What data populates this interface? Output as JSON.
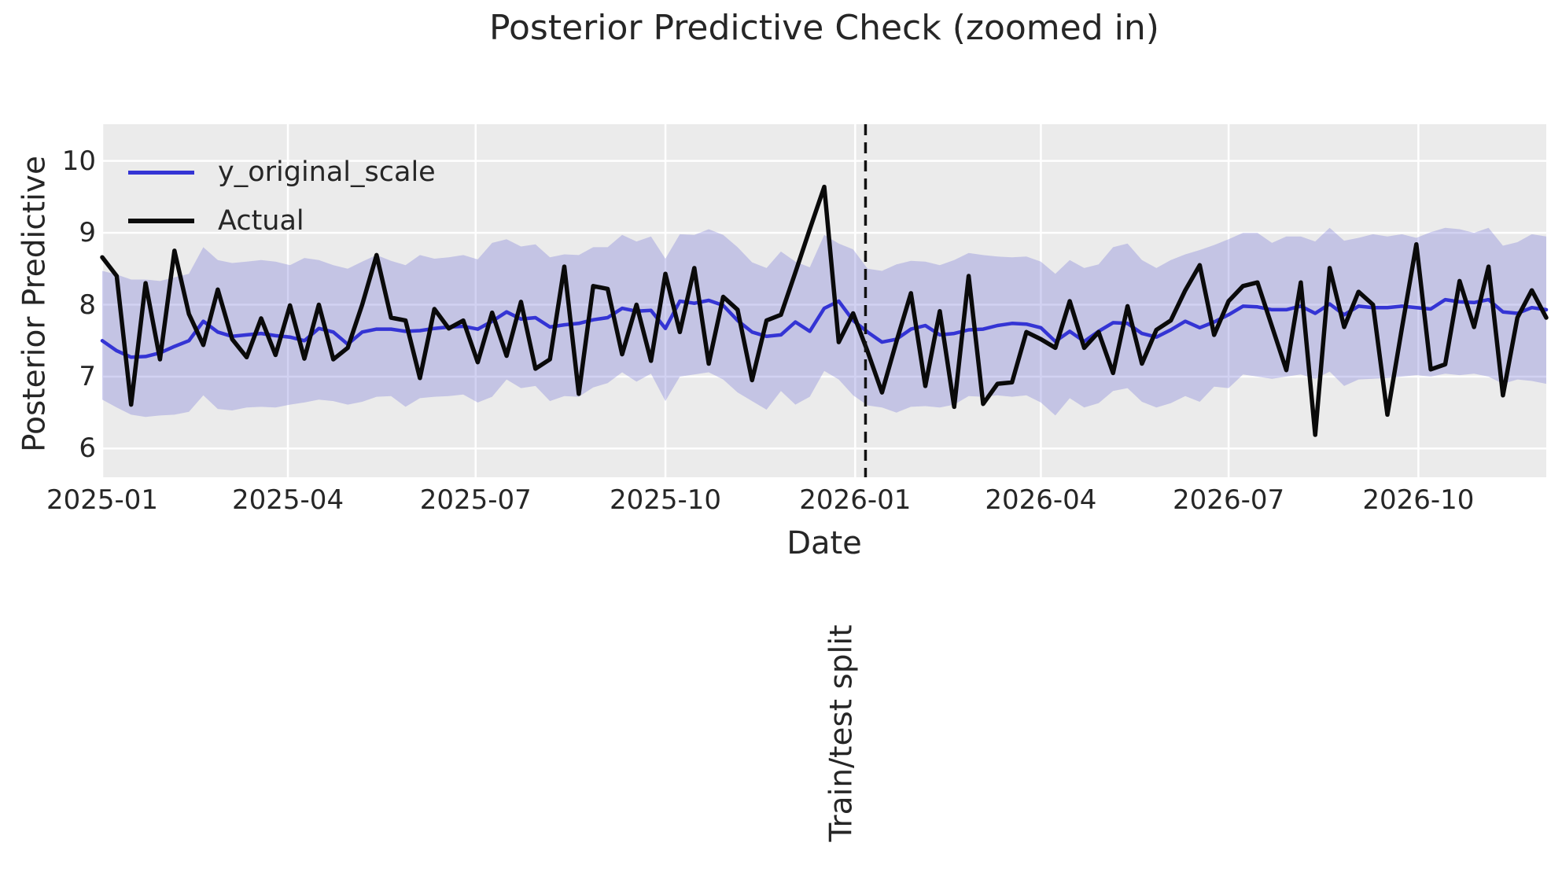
{
  "title": "Posterior Predictive Check (zoomed in)",
  "axes": {
    "xlabel": "Date",
    "ylabel": "Posterior Predictive",
    "y_ticks": [
      "10",
      "9",
      "8",
      "7",
      "6"
    ],
    "x_tick_labels": [
      "2025-01",
      "2025-04",
      "2025-07",
      "2025-10",
      "2026-01",
      "2026-04",
      "2026-07",
      "2026-10"
    ]
  },
  "split_annotation": "Train/test split",
  "colors": {
    "axes_background": "#ebebeb",
    "gridline": "#ffffff",
    "band_fill": "rgba(105,105,212,0.30)",
    "posterior_line": "#3434d4",
    "actual_line": "#0a0a0a",
    "split_line": "#111111",
    "text": "#262626"
  },
  "chart_data": {
    "type": "line",
    "title": "Posterior Predictive Check (zoomed in)",
    "xlabel": "Date",
    "ylabel": "Posterior Predictive",
    "x_start_date": "2025-01-01",
    "x_step_days": 7,
    "x_total_days": 700,
    "ylim": [
      5.6,
      10.51
    ],
    "y_ticks": [
      6,
      7,
      8,
      9,
      10
    ],
    "grid": true,
    "legend_position": "upper-left",
    "x_ticks": [
      {
        "label": "2025-01",
        "day": 0
      },
      {
        "label": "2025-04",
        "day": 90
      },
      {
        "label": "2025-07",
        "day": 181
      },
      {
        "label": "2025-10",
        "day": 273
      },
      {
        "label": "2026-01",
        "day": 365
      },
      {
        "label": "2026-04",
        "day": 455
      },
      {
        "label": "2026-07",
        "day": 546
      },
      {
        "label": "2026-10",
        "day": 638
      }
    ],
    "split_line": {
      "day": 370,
      "label": "Train/test split",
      "style": "dashed"
    },
    "series": [
      {
        "name": "y_original_scale",
        "color": "#3434d4",
        "values": [
          7.5,
          7.36,
          7.27,
          7.28,
          7.33,
          7.42,
          7.5,
          7.77,
          7.62,
          7.56,
          7.58,
          7.6,
          7.57,
          7.55,
          7.5,
          7.67,
          7.62,
          7.45,
          7.62,
          7.66,
          7.66,
          7.63,
          7.64,
          7.67,
          7.69,
          7.7,
          7.66,
          7.77,
          7.9,
          7.8,
          7.82,
          7.69,
          7.72,
          7.74,
          7.79,
          7.82,
          7.95,
          7.91,
          7.92,
          7.67,
          8.05,
          8.02,
          8.06,
          7.99,
          7.78,
          7.62,
          7.56,
          7.58,
          7.76,
          7.63,
          7.95,
          8.05,
          7.78,
          7.62,
          7.48,
          7.52,
          7.66,
          7.71,
          7.58,
          7.6,
          7.65,
          7.66,
          7.71,
          7.74,
          7.73,
          7.68,
          7.49,
          7.63,
          7.49,
          7.63,
          7.75,
          7.74,
          7.6,
          7.55,
          7.65,
          7.77,
          7.68,
          7.76,
          7.86,
          7.98,
          7.97,
          7.93,
          7.93,
          7.98,
          7.88,
          8.01,
          7.86,
          7.98,
          7.96,
          7.96,
          7.98,
          7.96,
          7.94,
          8.07,
          8.04,
          8.03,
          8.07,
          7.9,
          7.88,
          7.96,
          7.93
        ]
      },
      {
        "name": "Actual",
        "color": "#0a0a0a",
        "values": [
          8.66,
          8.4,
          6.61,
          8.3,
          7.24,
          8.75,
          7.87,
          7.44,
          8.21,
          7.52,
          7.27,
          7.81,
          7.3,
          7.99,
          7.25,
          8.0,
          7.24,
          7.4,
          8.0,
          8.69,
          7.82,
          7.78,
          6.98,
          7.94,
          7.67,
          7.78,
          7.2,
          7.89,
          7.29,
          8.04,
          7.11,
          7.24,
          8.53,
          6.76,
          8.26,
          8.22,
          7.31,
          8.0,
          7.22,
          8.43,
          7.62,
          8.51,
          7.18,
          8.11,
          7.93,
          6.95,
          7.78,
          7.86,
          8.45,
          9.05,
          9.64,
          7.48,
          7.88,
          7.35,
          6.78,
          7.49,
          8.16,
          6.87,
          7.91,
          6.58,
          8.4,
          6.62,
          6.9,
          6.92,
          7.62,
          7.52,
          7.4,
          8.05,
          7.4,
          7.62,
          7.05,
          7.98,
          7.18,
          7.65,
          7.78,
          8.2,
          8.55,
          7.58,
          8.05,
          8.26,
          8.31,
          7.7,
          7.09,
          8.31,
          6.19,
          8.51,
          7.69,
          8.18,
          8.0,
          6.47,
          7.67,
          8.84,
          7.1,
          7.17,
          8.33,
          7.69,
          8.53,
          6.74,
          7.82,
          8.2,
          7.82
        ]
      }
    ],
    "band": {
      "name": "posterior-credible-interval",
      "upper": [
        8.47,
        8.42,
        8.35,
        8.35,
        8.33,
        8.38,
        8.43,
        8.8,
        8.62,
        8.58,
        8.6,
        8.62,
        8.6,
        8.55,
        8.65,
        8.62,
        8.55,
        8.5,
        8.6,
        8.69,
        8.61,
        8.55,
        8.69,
        8.64,
        8.66,
        8.69,
        8.63,
        8.86,
        8.91,
        8.81,
        8.84,
        8.66,
        8.7,
        8.69,
        8.8,
        8.8,
        8.97,
        8.88,
        8.95,
        8.64,
        8.98,
        8.97,
        9.05,
        8.97,
        8.8,
        8.59,
        8.51,
        8.74,
        8.6,
        8.52,
        8.97,
        8.85,
        8.77,
        8.5,
        8.47,
        8.56,
        8.61,
        8.6,
        8.55,
        8.62,
        8.72,
        8.69,
        8.67,
        8.66,
        8.67,
        8.6,
        8.43,
        8.62,
        8.51,
        8.56,
        8.8,
        8.85,
        8.62,
        8.51,
        8.62,
        8.7,
        8.76,
        8.83,
        8.91,
        9.0,
        9.0,
        8.86,
        8.95,
        8.95,
        8.88,
        9.07,
        8.89,
        8.93,
        8.98,
        8.95,
        8.98,
        8.93,
        9.01,
        9.07,
        9.05,
        9.0,
        9.07,
        8.82,
        8.87,
        8.98,
        8.95
      ],
      "lower": [
        6.68,
        6.57,
        6.47,
        6.44,
        6.46,
        6.47,
        6.51,
        6.74,
        6.55,
        6.53,
        6.57,
        6.58,
        6.57,
        6.61,
        6.64,
        6.68,
        6.66,
        6.61,
        6.65,
        6.72,
        6.73,
        6.58,
        6.7,
        6.72,
        6.73,
        6.75,
        6.64,
        6.72,
        6.96,
        6.84,
        6.87,
        6.66,
        6.73,
        6.72,
        6.85,
        6.91,
        7.06,
        6.93,
        7.04,
        6.66,
        7.0,
        7.03,
        7.06,
        6.96,
        6.78,
        6.66,
        6.54,
        6.8,
        6.61,
        6.72,
        7.08,
        6.96,
        6.74,
        6.6,
        6.57,
        6.5,
        6.58,
        6.59,
        6.57,
        6.61,
        6.73,
        6.72,
        6.74,
        6.72,
        6.74,
        6.64,
        6.46,
        6.7,
        6.57,
        6.63,
        6.8,
        6.84,
        6.65,
        6.57,
        6.63,
        6.73,
        6.65,
        6.86,
        6.84,
        7.03,
        7.0,
        6.97,
        7.0,
        7.03,
        6.97,
        7.07,
        6.87,
        6.96,
        6.97,
        6.98,
        7.0,
        7.02,
        7.0,
        7.04,
        7.02,
        7.04,
        7.0,
        6.9,
        6.96,
        6.94,
        6.9
      ]
    }
  }
}
